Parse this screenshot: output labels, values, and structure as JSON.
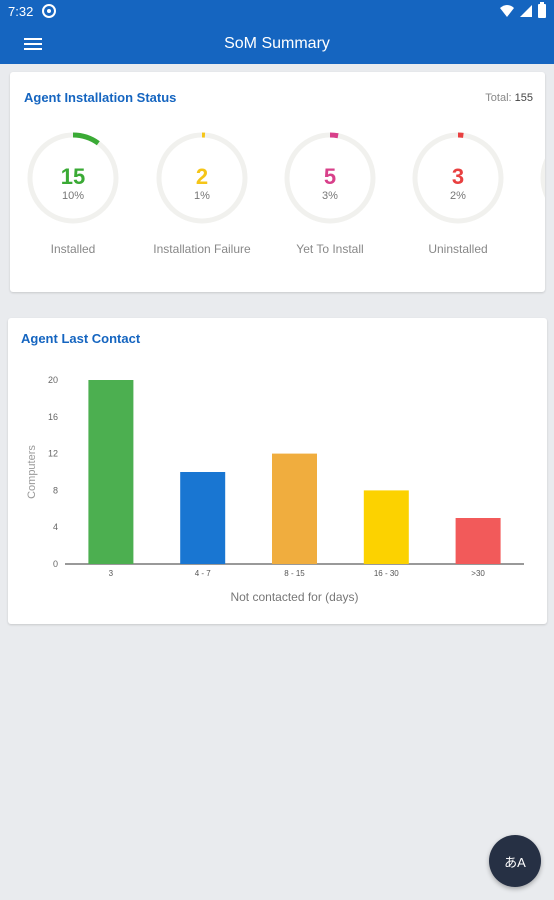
{
  "status_bar": {
    "time": "7:32"
  },
  "app_bar": {
    "title": "SoM Summary"
  },
  "installation": {
    "title": "Agent Installation Status",
    "total_label": "Total:",
    "total_value": "155",
    "items": [
      {
        "value": "15",
        "percent": "10%",
        "fraction": 0.1,
        "label": "Installed",
        "color": "#3aaa35"
      },
      {
        "value": "2",
        "percent": "1%",
        "fraction": 0.01,
        "label": "Installation Failure",
        "color": "#f5c518"
      },
      {
        "value": "5",
        "percent": "3%",
        "fraction": 0.03,
        "label": "Yet To Install",
        "color": "#d8408a"
      },
      {
        "value": "3",
        "percent": "2%",
        "fraction": 0.02,
        "label": "Uninstalled",
        "color": "#e84040"
      }
    ]
  },
  "last_contact": {
    "title": "Agent Last Contact"
  },
  "chart_data": {
    "type": "bar",
    "categories": [
      "3",
      "4 - 7",
      "8 - 15",
      "16 - 30",
      ">30"
    ],
    "values": [
      20,
      10,
      12,
      8,
      5
    ],
    "colors": [
      "#4caf50",
      "#1976d2",
      "#f0ad3e",
      "#fcd200",
      "#f25a5a"
    ],
    "xlabel": "Not contacted for (days)",
    "ylabel": "Computers",
    "yticks": [
      0,
      4,
      8,
      12,
      16,
      20
    ],
    "ylim": [
      0,
      20
    ]
  },
  "fab": {
    "label": "あA"
  }
}
